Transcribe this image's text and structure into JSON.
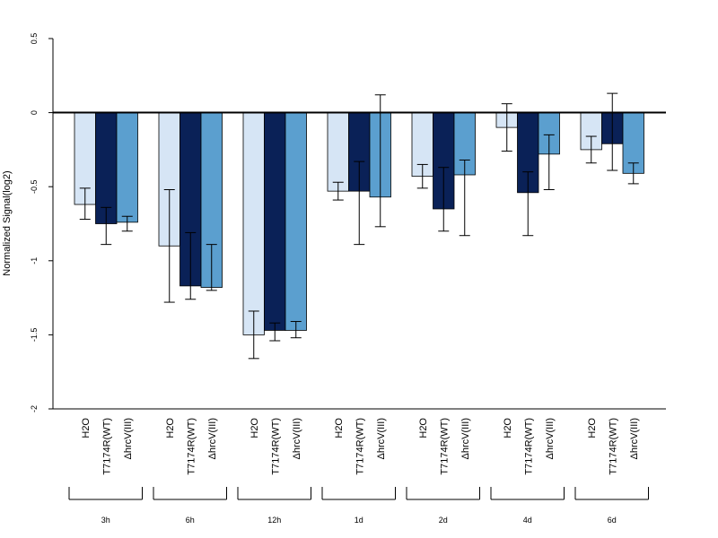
{
  "chart_data": {
    "type": "bar",
    "title": "",
    "ylabel": "Normalized Signal(log2)",
    "xlabel": "",
    "ylim": [
      -2,
      0.5
    ],
    "yticks": [
      0.5,
      0,
      -0.5,
      -1,
      -1.5,
      -2
    ],
    "ytick_labels": [
      "0.5",
      "0",
      "-0.5",
      "-1",
      "-1.5",
      "-2"
    ],
    "grid": false,
    "legend": "none",
    "group_labels": [
      "3h",
      "6h",
      "12h",
      "1d",
      "2d",
      "4d",
      "6d"
    ],
    "bar_labels": [
      "H2O",
      "T7174R(WT)",
      "ΔhrcV(III)"
    ],
    "series": [
      {
        "name": "H2O",
        "color": "#d6e5f5",
        "values": [
          -0.62,
          -0.9,
          -1.5,
          -0.53,
          -0.43,
          -0.1,
          -0.25
        ],
        "err_low": [
          -0.72,
          -1.28,
          -1.66,
          -0.59,
          -0.51,
          -0.26,
          -0.34
        ],
        "err_high": [
          -0.51,
          -0.52,
          -1.34,
          -0.47,
          -0.35,
          0.06,
          -0.16
        ]
      },
      {
        "name": "T7174R(WT)",
        "color": "#0a2157",
        "values": [
          -0.75,
          -1.17,
          -1.47,
          -0.53,
          -0.65,
          -0.54,
          -0.21
        ],
        "err_low": [
          -0.89,
          -1.26,
          -1.54,
          -0.89,
          -0.8,
          -0.83,
          -0.39
        ],
        "err_high": [
          -0.64,
          -0.81,
          -1.42,
          -0.33,
          -0.37,
          -0.4,
          0.13
        ]
      },
      {
        "name": "ΔhrcV(III)",
        "color": "#5b9fcf",
        "values": [
          -0.74,
          -1.18,
          -1.47,
          -0.57,
          -0.42,
          -0.28,
          -0.41
        ],
        "err_low": [
          -0.8,
          -1.2,
          -1.52,
          -0.77,
          -0.83,
          -0.52,
          -0.48
        ],
        "err_high": [
          -0.7,
          -0.89,
          -1.41,
          0.12,
          -0.32,
          -0.15,
          -0.34
        ]
      }
    ]
  }
}
